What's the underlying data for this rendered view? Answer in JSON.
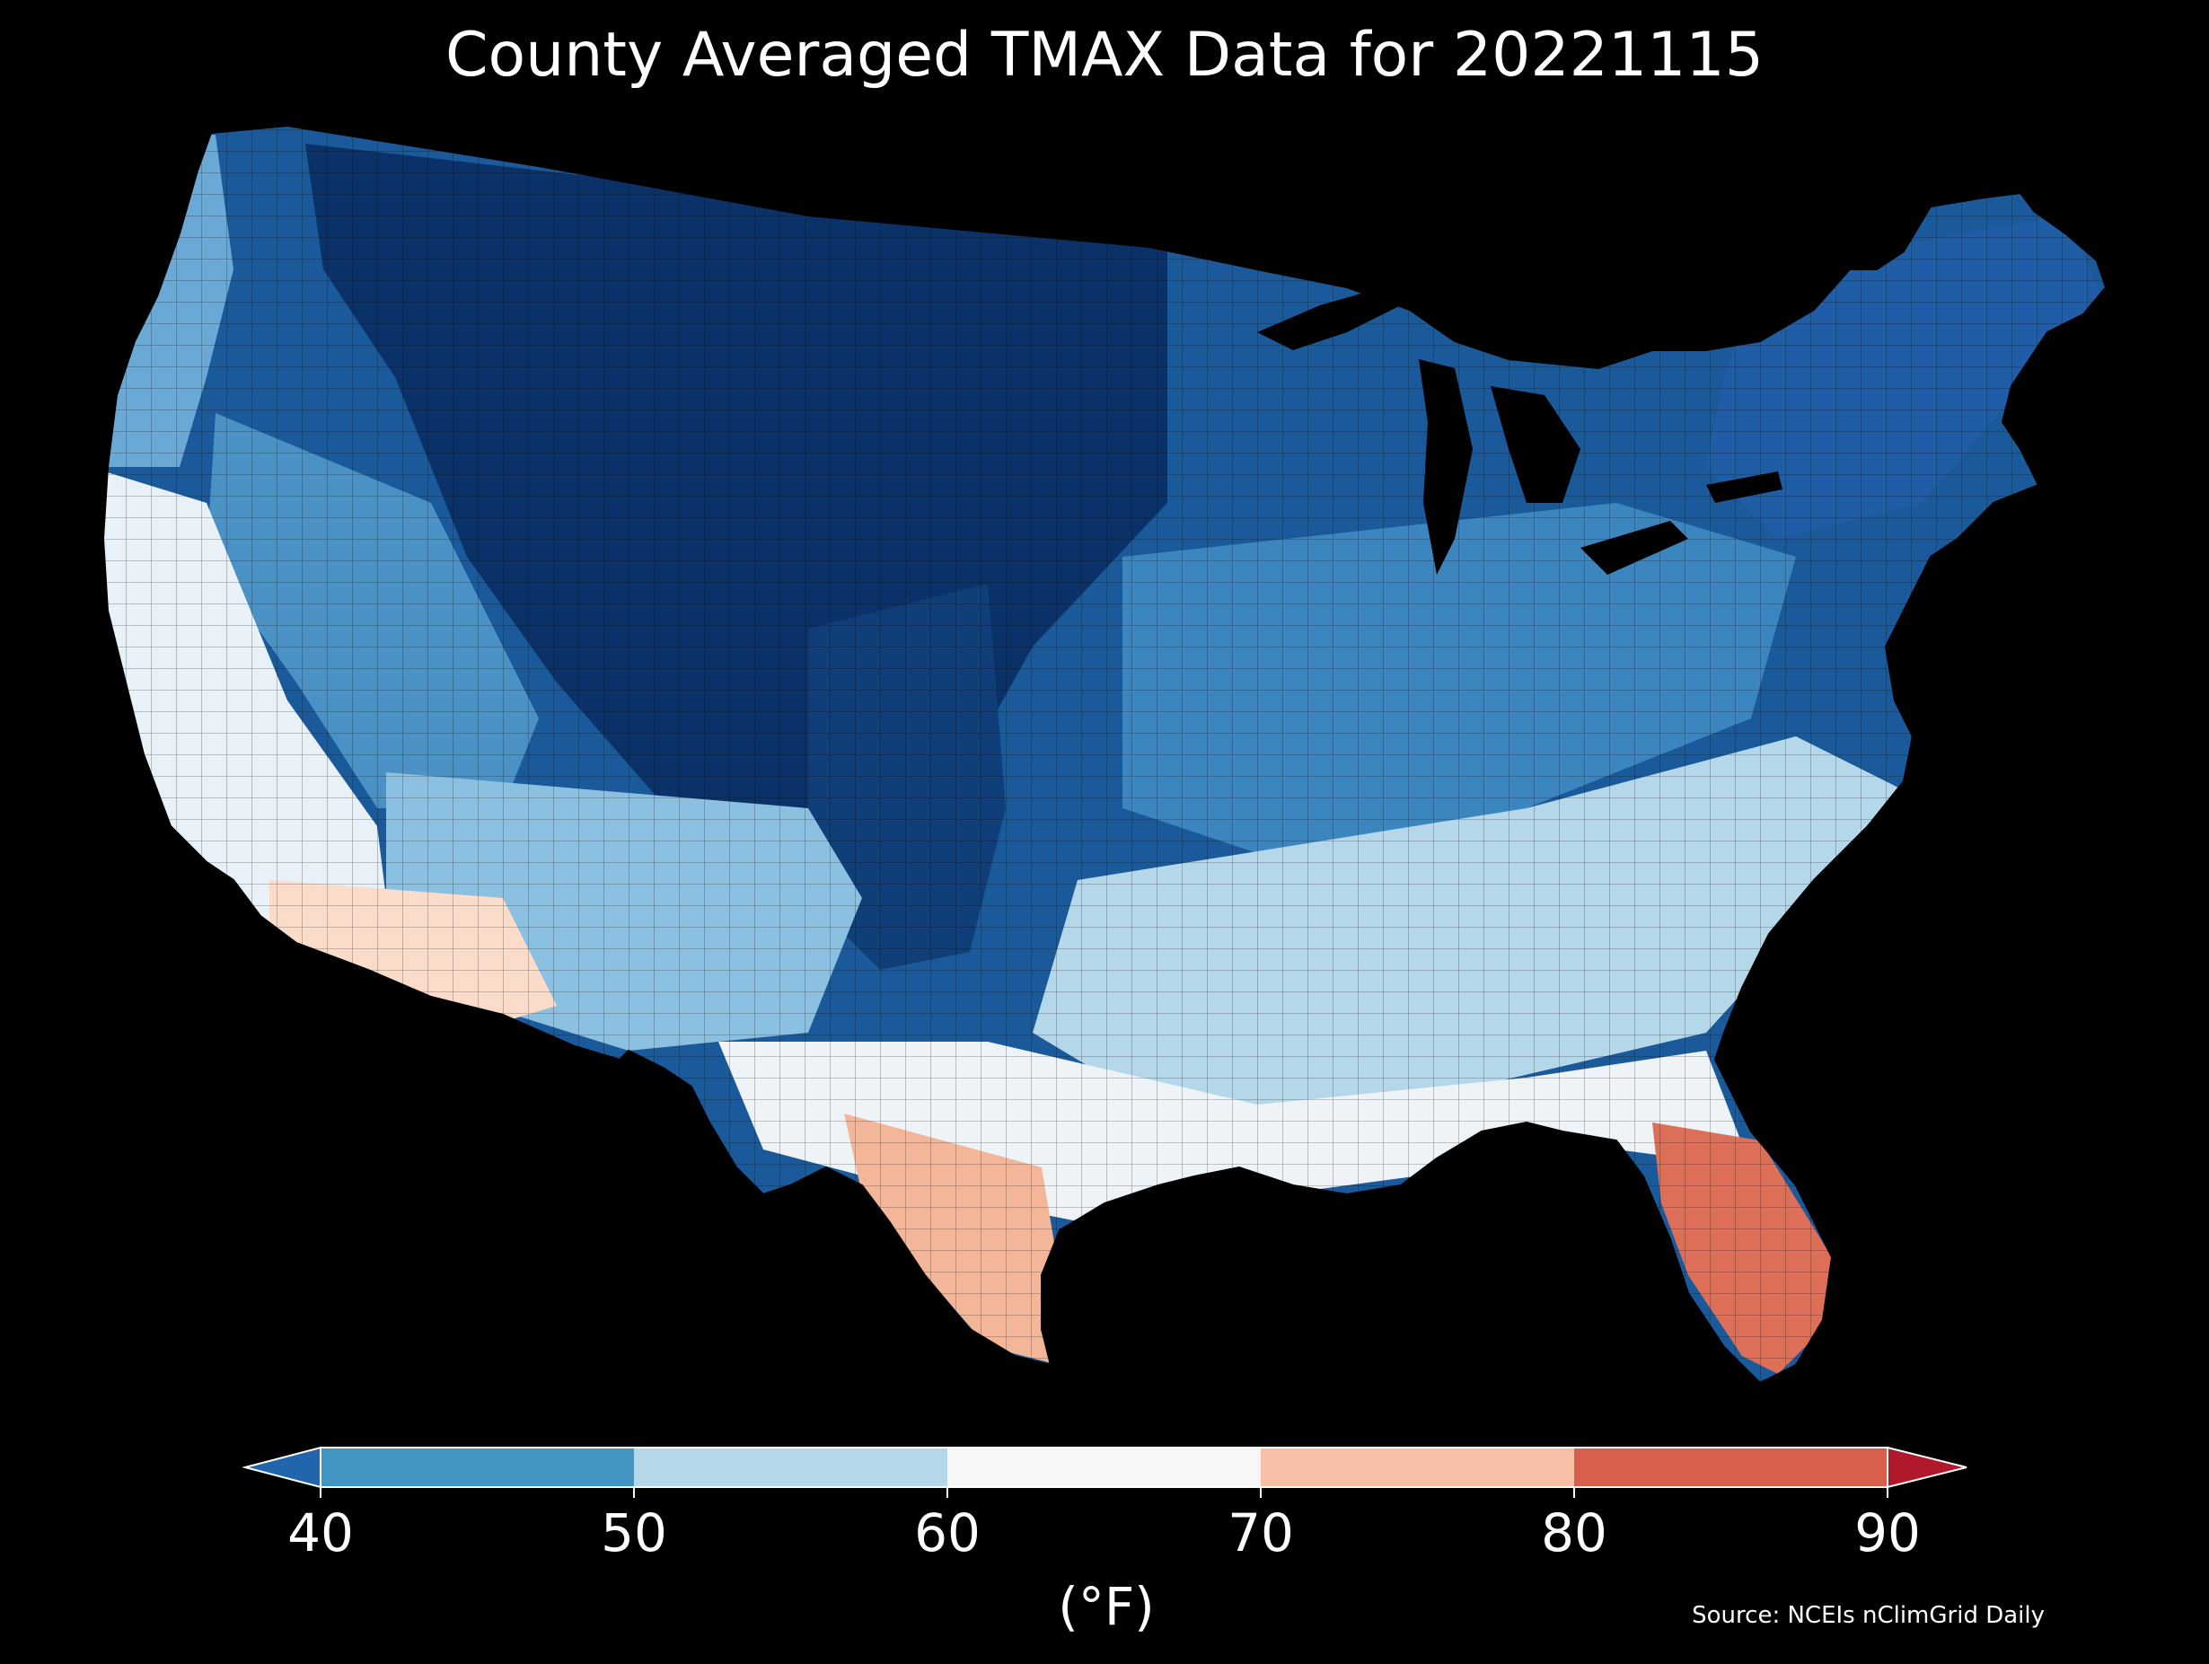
{
  "title": "County Averaged TMAX Data for 20221115",
  "map": {
    "region": "Contiguous United States",
    "regions": [
      {
        "name": "Pacific Northwest coast",
        "tmax_bin": "50-60"
      },
      {
        "name": "Northern Rockies / Plains",
        "tmax_bin": "<40"
      },
      {
        "name": "Great Basin",
        "tmax_bin": "40-50"
      },
      {
        "name": "California coast",
        "tmax_bin": "60-70"
      },
      {
        "name": "Southern Arizona / SE California",
        "tmax_bin": "70-80"
      },
      {
        "name": "Central Plains",
        "tmax_bin": "<40"
      },
      {
        "name": "Midwest / Ohio Valley",
        "tmax_bin": "40-50"
      },
      {
        "name": "Northeast",
        "tmax_bin": "<40"
      },
      {
        "name": "Mid-Atlantic / Southeast",
        "tmax_bin": "50-60"
      },
      {
        "name": "Gulf Coast",
        "tmax_bin": "60-70"
      },
      {
        "name": "South Texas",
        "tmax_bin": "70-80"
      },
      {
        "name": "Florida peninsula",
        "tmax_bin": "80-90"
      }
    ]
  },
  "colorbar": {
    "ticks": [
      "40",
      "50",
      "60",
      "70",
      "80",
      "90"
    ],
    "unit_label": "(°F)",
    "extend": "both",
    "colors": {
      "under": "#2166ac",
      "bins": [
        "#4393c3",
        "#b5d7ea",
        "#f7f7f7",
        "#f7c0a6",
        "#d6604d"
      ],
      "over": "#b2182b"
    }
  },
  "source": "Source: NCEIs nClimGrid Daily"
}
